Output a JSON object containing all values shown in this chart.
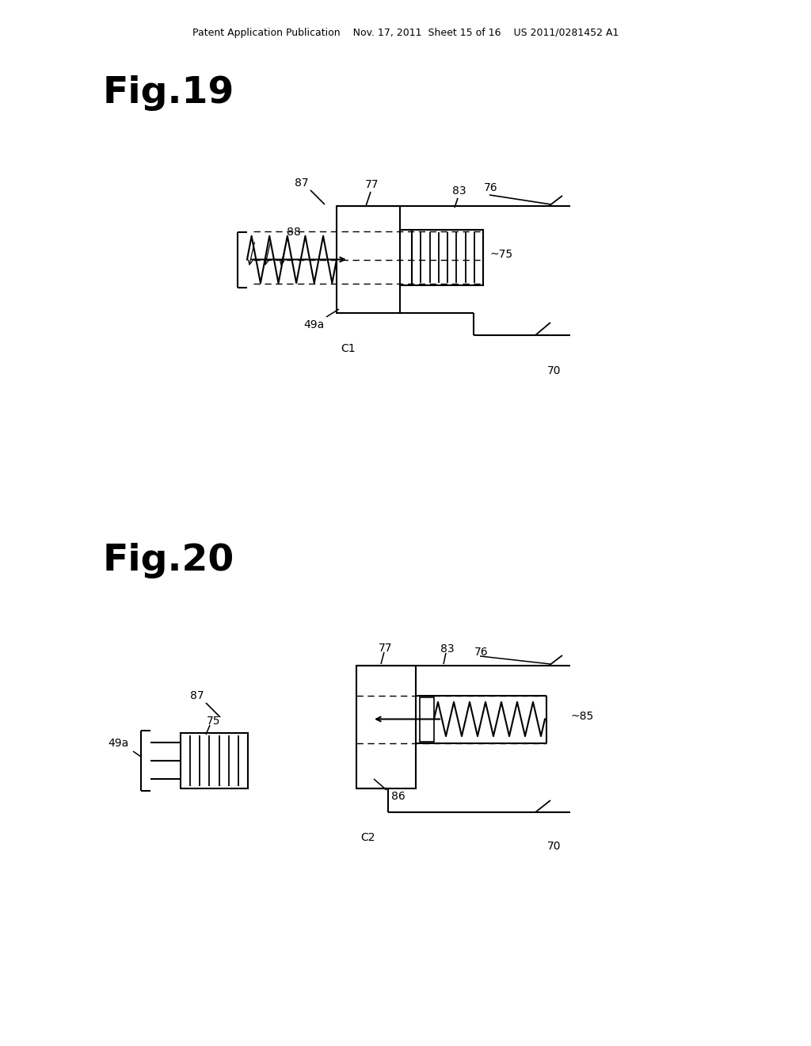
{
  "bg_color": "#ffffff",
  "line_color": "#000000",
  "header_text": "Patent Application Publication    Nov. 17, 2011  Sheet 15 of 16    US 2011/0281452 A1",
  "fig19_title": "Fig.19",
  "fig20_title": "Fig.20"
}
